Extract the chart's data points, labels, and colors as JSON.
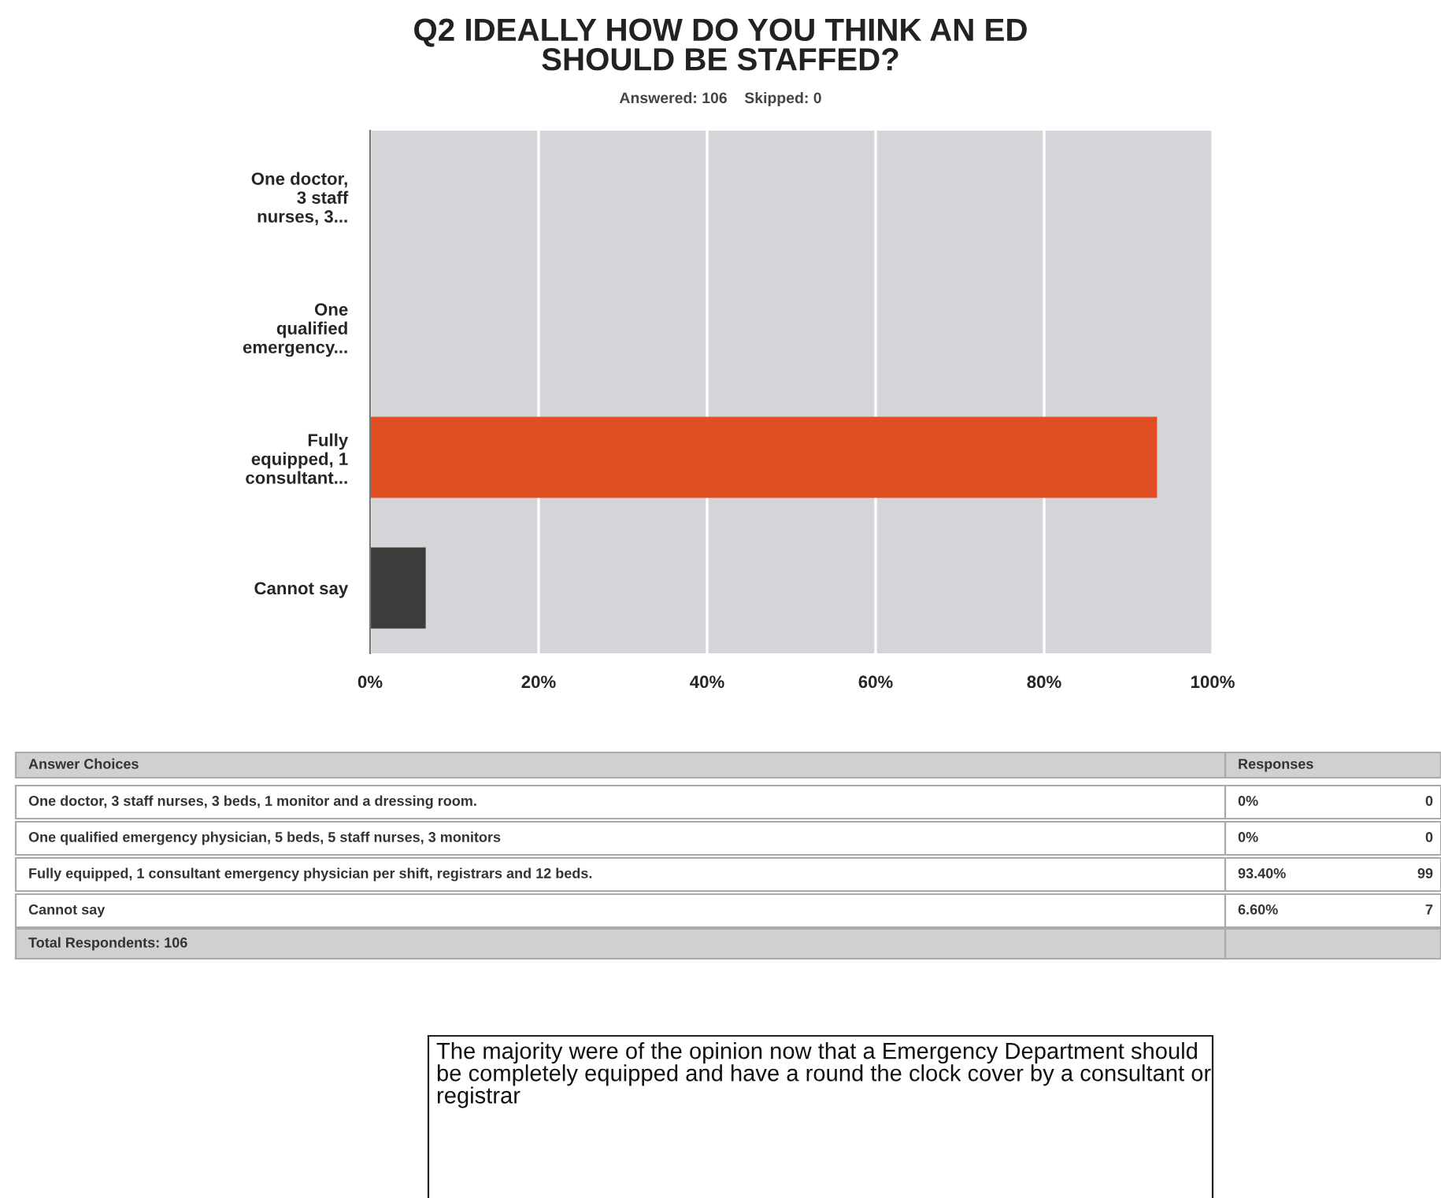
{
  "chart_data": {
    "type": "bar",
    "orientation": "horizontal",
    "title": "Q2 IDEALLY HOW DO YOU THINK AN ED\nSHOULD BE STAFFED?",
    "subtitle": "Answered: 106    Skipped: 0",
    "categories": [
      "One doctor,\n3 staff\nnurses, 3...",
      "One\nqualified\nemergency...",
      "Fully\nequipped, 1\nconsultant...",
      "Cannot say"
    ],
    "values": [
      0,
      0,
      93.4,
      6.6
    ],
    "colors": [
      "#e04e22",
      "#e04e22",
      "#e04e22",
      "#3a3d39"
    ],
    "xlim": [
      0,
      100
    ],
    "xticks": [
      {
        "value": 0,
        "label": "0%"
      },
      {
        "value": 20,
        "label": "20%"
      },
      {
        "value": 40,
        "label": "40%"
      },
      {
        "value": 60,
        "label": "60%"
      },
      {
        "value": 80,
        "label": "80%"
      },
      {
        "value": 100,
        "label": "100%"
      }
    ],
    "grid": "x",
    "annotations": [
      "Answer Choices",
      "Responses",
      "One doctor, 3 staff nurses, 3 beds, 1 monitor and a dressing room.",
      "One qualified emergency physician, 5 beds, 5 staff nurses, 3 monitors",
      "Fully equipped, 1 consultant emergency physician per shift, registrars and 12 beds.",
      "Cannot say",
      "0%",
      "0%",
      "93.40%",
      "6.60%",
      "0",
      "0",
      "99",
      "7",
      "Total Respondents: 106",
      "The majority were of the opinion now that a Emergency Department should\nbe completely equipped and have a round the clock cover by a consultant or\nregistrar"
    ]
  }
}
